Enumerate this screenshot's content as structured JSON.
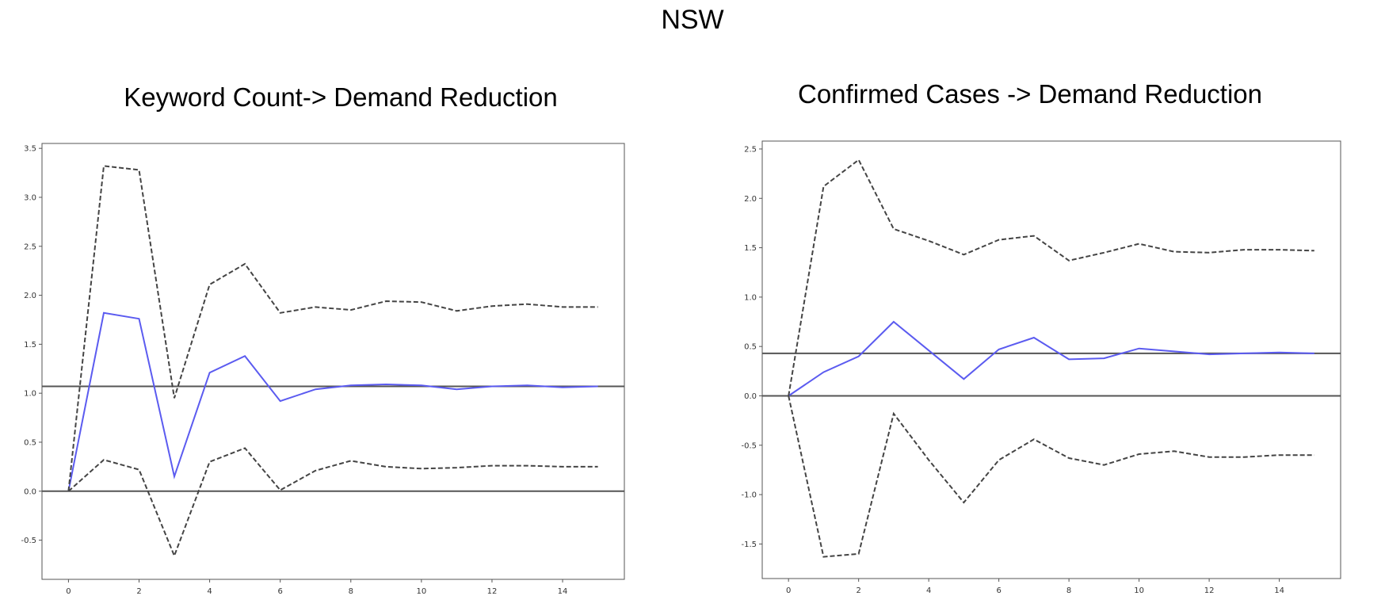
{
  "figure": {
    "title": "NSW",
    "colors": {
      "response": "#5b5bf0",
      "band": "#444444",
      "axis": "#555555",
      "zero_line": "#555555"
    }
  },
  "chart_data": [
    {
      "type": "line",
      "title": "Keyword Count-> Demand Reduction",
      "xlabel": "",
      "ylabel": "",
      "xlim": [
        -0.75,
        15.75
      ],
      "ylim": [
        -0.9,
        3.55
      ],
      "x_ticks": [
        0,
        2,
        4,
        6,
        8,
        10,
        12,
        14
      ],
      "y_ticks": [
        -0.5,
        0.0,
        0.5,
        1.0,
        1.5,
        2.0,
        2.5,
        3.0,
        3.5
      ],
      "x_tick_labels": [
        "0",
        "2",
        "4",
        "6",
        "8",
        "10",
        "12",
        "14"
      ],
      "y_tick_labels": [
        "-0.5",
        "0.0",
        "0.5",
        "1.0",
        "1.5",
        "2.0",
        "2.5",
        "3.0",
        "3.5"
      ],
      "hlines": [
        0.0,
        1.07
      ],
      "x": [
        0,
        1,
        2,
        3,
        4,
        5,
        6,
        7,
        8,
        9,
        10,
        11,
        12,
        13,
        14,
        15
      ],
      "series": [
        {
          "role": "response",
          "style": "solid",
          "values": [
            0.0,
            1.82,
            1.76,
            0.15,
            1.21,
            1.38,
            0.92,
            1.04,
            1.08,
            1.09,
            1.08,
            1.04,
            1.07,
            1.08,
            1.06,
            1.07
          ]
        },
        {
          "role": "upper",
          "style": "dashed",
          "values": [
            0.0,
            3.32,
            3.28,
            0.95,
            2.11,
            2.32,
            1.82,
            1.88,
            1.85,
            1.94,
            1.93,
            1.84,
            1.89,
            1.91,
            1.88,
            1.88
          ]
        },
        {
          "role": "lower",
          "style": "dashed",
          "values": [
            0.0,
            0.32,
            0.22,
            -0.66,
            0.3,
            0.44,
            0.01,
            0.21,
            0.31,
            0.25,
            0.23,
            0.24,
            0.26,
            0.26,
            0.25,
            0.25
          ]
        }
      ]
    },
    {
      "type": "line",
      "title": "Confirmed Cases -> Demand Reduction",
      "xlabel": "",
      "ylabel": "",
      "xlim": [
        -0.75,
        15.75
      ],
      "ylim": [
        -1.85,
        2.58
      ],
      "x_ticks": [
        0,
        2,
        4,
        6,
        8,
        10,
        12,
        14
      ],
      "y_ticks": [
        -1.5,
        -1.0,
        -0.5,
        0.0,
        0.5,
        1.0,
        1.5,
        2.0,
        2.5
      ],
      "x_tick_labels": [
        "0",
        "2",
        "4",
        "6",
        "8",
        "10",
        "12",
        "14"
      ],
      "y_tick_labels": [
        "-1.5",
        "-1.0",
        "-0.5",
        "0.0",
        "0.5",
        "1.0",
        "1.5",
        "2.0",
        "2.5"
      ],
      "hlines": [
        0.0,
        0.43
      ],
      "x": [
        0,
        1,
        2,
        3,
        4,
        5,
        6,
        7,
        8,
        9,
        10,
        11,
        12,
        13,
        14,
        15
      ],
      "series": [
        {
          "role": "response",
          "style": "solid",
          "values": [
            0.0,
            0.24,
            0.4,
            0.75,
            0.46,
            0.17,
            0.47,
            0.59,
            0.37,
            0.38,
            0.48,
            0.45,
            0.42,
            0.43,
            0.44,
            0.43
          ]
        },
        {
          "role": "upper",
          "style": "dashed",
          "values": [
            0.0,
            2.12,
            2.39,
            1.69,
            1.57,
            1.43,
            1.58,
            1.62,
            1.37,
            1.45,
            1.54,
            1.46,
            1.45,
            1.48,
            1.48,
            1.47
          ]
        },
        {
          "role": "lower",
          "style": "dashed",
          "values": [
            0.0,
            -1.63,
            -1.6,
            -0.18,
            -0.65,
            -1.08,
            -0.65,
            -0.44,
            -0.63,
            -0.7,
            -0.59,
            -0.56,
            -0.62,
            -0.62,
            -0.6,
            -0.6
          ]
        }
      ]
    }
  ]
}
